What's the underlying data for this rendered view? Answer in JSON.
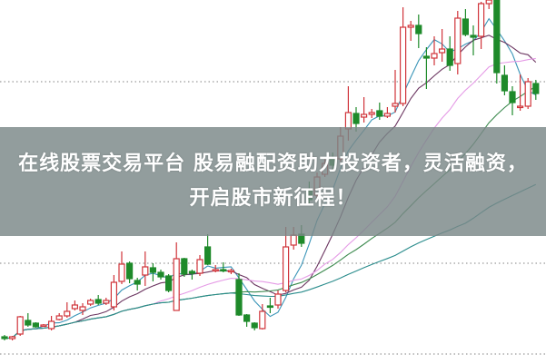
{
  "headline": "在线股票交易平台 股易融配资助力投资者，灵活融资，开启股市新征程！",
  "chart_data": {
    "type": "candlestick",
    "title": "",
    "xlabel": "",
    "ylabel": "",
    "price_range": [
      0,
      400
    ],
    "grid": "horizontal dotted",
    "gridlines": [
      10,
      110,
      310
    ],
    "colors": {
      "up": "#d0343a",
      "down": "#1e8a2a",
      "grid": "#9a9a9a",
      "banner": "#7a8888"
    },
    "moving_averages": [
      {
        "period": 5,
        "color": "#3a95b8"
      },
      {
        "period": 10,
        "color": "#6b3560"
      },
      {
        "period": 20,
        "color": "#e59be6"
      },
      {
        "period": 30,
        "color": "#3c8a4e"
      },
      {
        "period": 60,
        "color": "#2a8c8c"
      }
    ],
    "candles": [
      [
        29,
        31,
        25,
        27
      ],
      [
        27,
        30,
        25,
        29
      ],
      [
        32,
        52,
        30,
        51
      ],
      [
        47,
        55,
        40,
        42
      ],
      [
        44,
        45,
        39,
        40
      ],
      [
        42,
        43,
        41,
        42
      ],
      [
        38,
        52,
        36,
        46
      ],
      [
        48,
        55,
        47,
        52
      ],
      [
        52,
        67,
        50,
        57
      ],
      [
        60,
        69,
        58,
        64
      ],
      [
        58,
        66,
        53,
        62
      ],
      [
        65,
        71,
        63,
        69
      ],
      [
        70,
        75,
        64,
        66
      ],
      [
        66,
        72,
        64,
        69
      ],
      [
        62,
        97,
        58,
        89
      ],
      [
        90,
        123,
        87,
        109
      ],
      [
        110,
        112,
        88,
        93
      ],
      [
        91,
        94,
        80,
        87
      ],
      [
        97,
        123,
        85,
        106
      ],
      [
        105,
        110,
        90,
        100
      ],
      [
        100,
        103,
        92,
        95
      ],
      [
        96,
        98,
        78,
        80
      ],
      [
        58,
        133,
        58,
        115
      ],
      [
        115,
        116,
        95,
        98
      ],
      [
        101,
        103,
        92,
        99
      ],
      [
        99,
        119,
        96,
        114
      ],
      [
        128,
        142,
        108,
        109
      ],
      [
        102,
        108,
        100,
        103
      ],
      [
        103,
        111,
        100,
        102
      ],
      [
        101,
        104,
        98,
        102
      ],
      [
        92,
        99,
        52,
        53
      ],
      [
        53,
        54,
        40,
        46
      ],
      [
        44,
        45,
        36,
        39
      ],
      [
        38,
        65,
        37,
        57
      ],
      [
        63,
        72,
        55,
        62
      ],
      [
        64,
        80,
        60,
        76
      ],
      [
        80,
        150,
        78,
        128
      ],
      [
        130,
        150,
        125,
        141
      ],
      [
        142,
        152,
        128,
        132
      ],
      [
        190,
        200,
        175,
        180
      ],
      [
        185,
        210,
        180,
        205
      ],
      [
        208,
        225,
        205,
        220
      ],
      [
        225,
        232,
        212,
        218
      ],
      [
        225,
        260,
        222,
        250
      ],
      [
        258,
        305,
        245,
        276
      ],
      [
        275,
        282,
        255,
        264
      ],
      [
        271,
        293,
        265,
        274
      ],
      [
        274,
        280,
        270,
        276
      ],
      [
        278,
        287,
        268,
        272
      ],
      [
        272,
        282,
        270,
        275
      ],
      [
        283,
        323,
        276,
        286
      ],
      [
        286,
        392,
        283,
        370
      ],
      [
        370,
        377,
        355,
        372
      ],
      [
        372,
        384,
        347,
        363
      ],
      [
        338,
        348,
        302,
        336
      ],
      [
        336,
        360,
        328,
        341
      ],
      [
        342,
        368,
        332,
        346
      ],
      [
        346,
        360,
        322,
        328
      ],
      [
        330,
        388,
        318,
        380
      ],
      [
        379,
        390,
        360,
        362
      ],
      [
        361,
        372,
        339,
        359
      ],
      [
        360,
        398,
        346,
        396
      ],
      [
        396,
        400,
        390,
        400
      ],
      [
        400,
        400,
        308,
        320
      ],
      [
        317,
        328,
        295,
        300
      ],
      [
        299,
        305,
        273,
        287
      ],
      [
        282,
        318,
        278,
        283
      ],
      [
        283,
        314,
        280,
        310
      ],
      [
        308,
        312,
        290,
        297
      ]
    ]
  }
}
